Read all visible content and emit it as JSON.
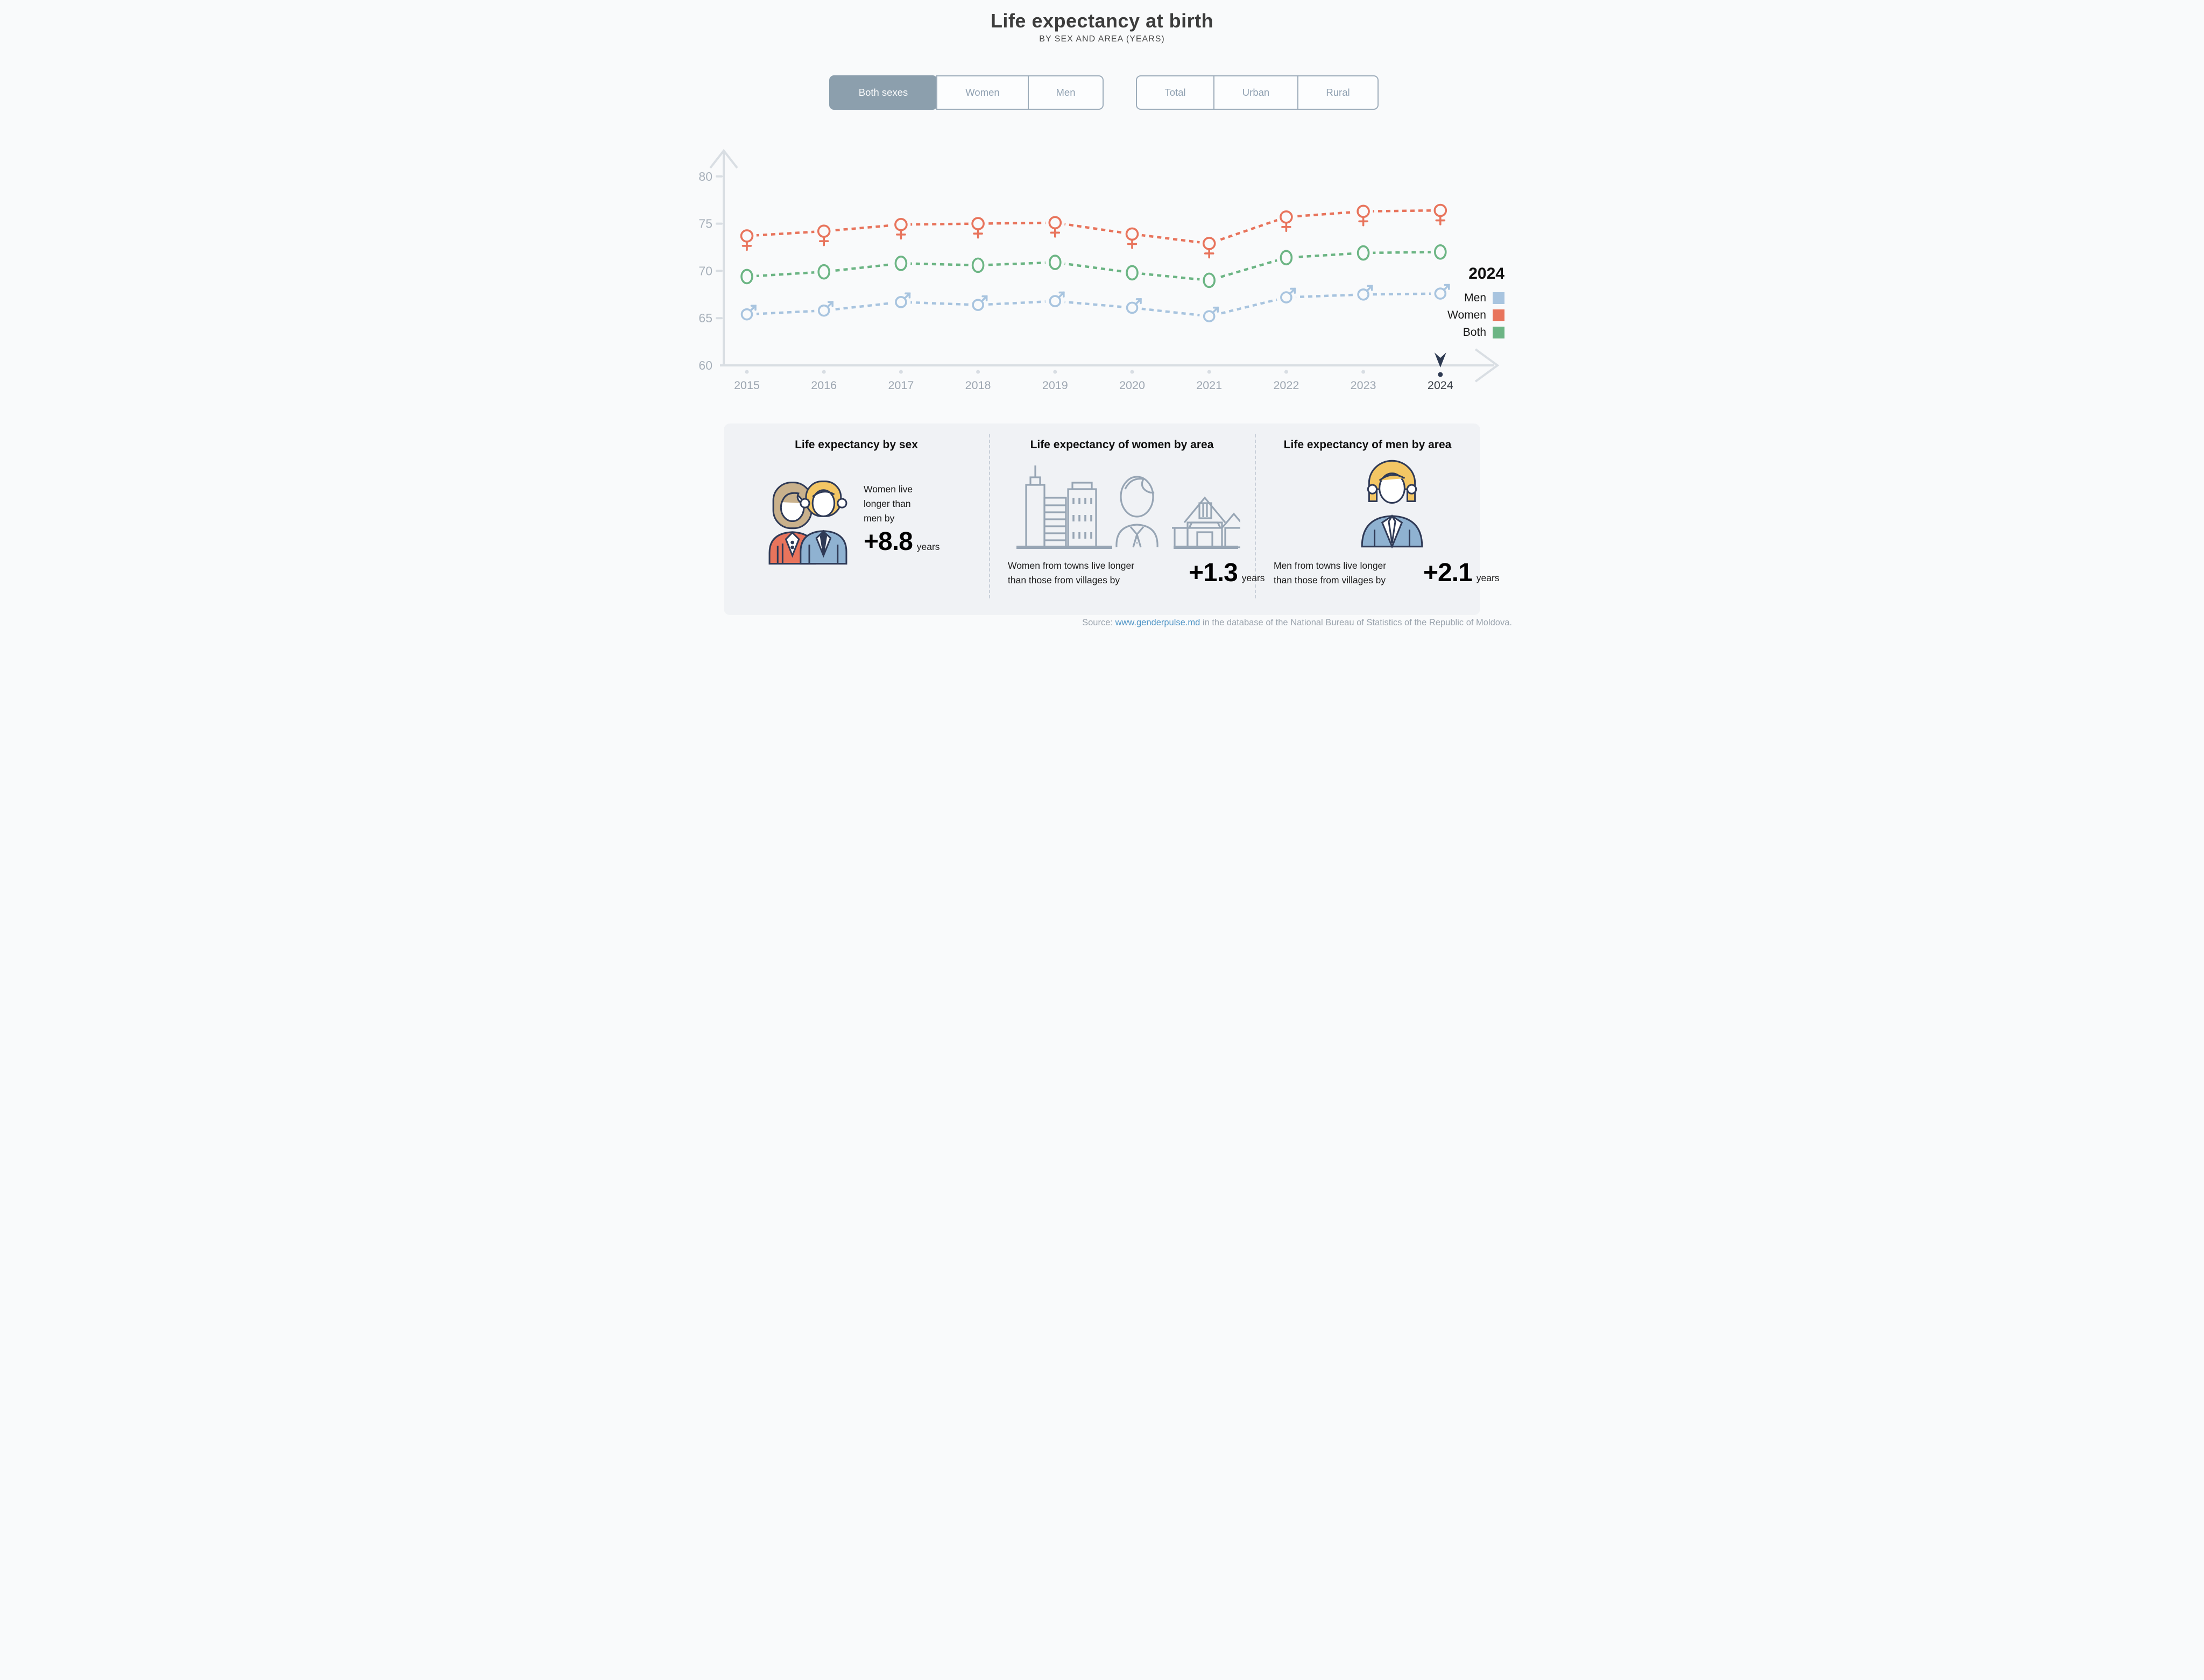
{
  "header": {
    "title": "Life expectancy at birth",
    "subtitle": "BY SEX AND AREA (YEARS)"
  },
  "controls": {
    "sex": {
      "items": [
        {
          "label": "Both sexes",
          "selected": true
        },
        {
          "label": "Women",
          "selected": false
        },
        {
          "label": "Men",
          "selected": false
        }
      ]
    },
    "area": {
      "items": [
        {
          "label": "Total",
          "selected": false
        },
        {
          "label": "Urban",
          "selected": false
        },
        {
          "label": "Rural",
          "selected": false
        }
      ]
    }
  },
  "legend": {
    "year": "2024",
    "items": [
      {
        "label": "Men",
        "color": "#A8C4DF"
      },
      {
        "label": "Women",
        "color": "#E8745C"
      },
      {
        "label": "Both",
        "color": "#6CB584"
      }
    ]
  },
  "chart_data": {
    "type": "line",
    "title": "Life expectancy at birth by sex and area (years)",
    "x": [
      2015,
      2016,
      2017,
      2018,
      2019,
      2020,
      2021,
      2022,
      2023,
      2024
    ],
    "series": [
      {
        "name": "Women",
        "color": "#E8745C",
        "marker": "female",
        "values": [
          73.7,
          74.2,
          74.9,
          75.0,
          75.1,
          73.9,
          72.9,
          75.7,
          76.3,
          76.4
        ]
      },
      {
        "name": "Both",
        "color": "#6CB584",
        "marker": "circle",
        "values": [
          69.4,
          69.9,
          70.8,
          70.6,
          70.9,
          69.8,
          69.0,
          71.4,
          71.9,
          72.0
        ]
      },
      {
        "name": "Men",
        "color": "#A8C4DF",
        "marker": "male",
        "values": [
          65.4,
          65.8,
          66.7,
          66.4,
          66.8,
          66.1,
          65.2,
          67.2,
          67.5,
          67.6
        ]
      }
    ],
    "ylim": [
      60,
      80
    ],
    "yticks": [
      60,
      65,
      70,
      75,
      80
    ],
    "selected_x": 2024,
    "grid": false,
    "legend_position": "top-right",
    "line_style": "dashed"
  },
  "cards": [
    {
      "title": "Life expectancy by sex",
      "lines": [
        "Women live",
        "longer than",
        "men by"
      ],
      "value": "+8.8",
      "unit": "years"
    },
    {
      "title": "Life expectancy of women by area",
      "lines": [
        "Women from towns live longer",
        "than those from villages by"
      ],
      "value": "+1.3",
      "unit": "years"
    },
    {
      "title": "Life expectancy of men by area",
      "lines": [
        "Men from towns live longer",
        "than those from villages by"
      ],
      "value": "+2.1",
      "unit": "years"
    }
  ],
  "source": {
    "prefix": "Source: ",
    "link": "www.genderpulse.md",
    "suffix": " in the database of the National Bureau of Statistics of the Republic of Moldova."
  },
  "colors": {
    "page_bg": "#F9FAFB",
    "panel_bg": "#F0F2F5",
    "axis": "#D9DEE3",
    "axis_label": "#A7B0BA",
    "year_label": "#9DA6B1",
    "selected_year_label": "#3A3F47",
    "marker_navy": "#2E3A52",
    "selected_button_bg": "#8C9FAD",
    "button_border": "#9DACBA",
    "women": "#E8745C",
    "men": "#A8C4DF",
    "both": "#6CB584",
    "link": "#4E94C6"
  }
}
